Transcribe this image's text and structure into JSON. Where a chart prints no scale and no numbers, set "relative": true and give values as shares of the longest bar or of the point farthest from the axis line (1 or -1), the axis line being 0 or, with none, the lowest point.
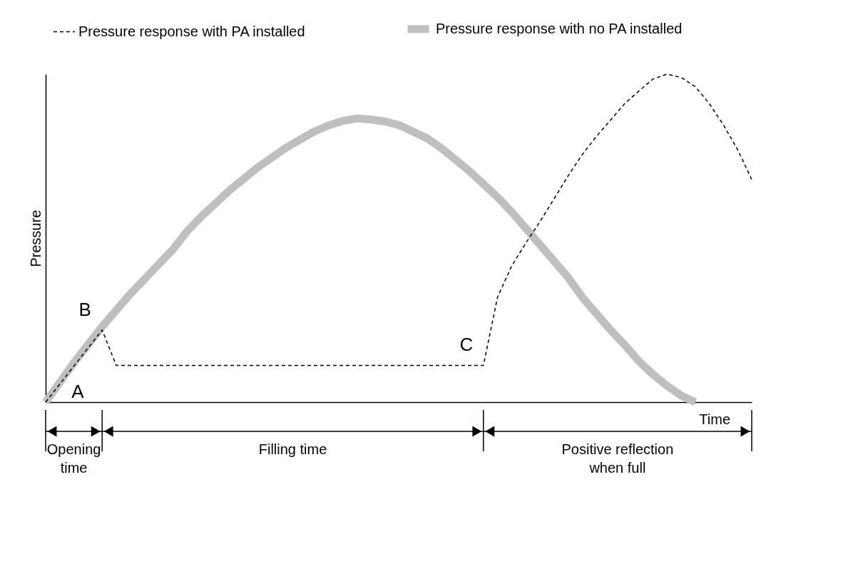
{
  "chart_data": {
    "type": "line",
    "relative": true,
    "ylabel": "Pressure",
    "xlabel": "Time",
    "categories": [
      null,
      null,
      null,
      null,
      null,
      null,
      null,
      null,
      null,
      null,
      null,
      null,
      null,
      null,
      null,
      null,
      null,
      null,
      null,
      null,
      null,
      null,
      null,
      null,
      null,
      null,
      null,
      null,
      null,
      null,
      null,
      null,
      null,
      null,
      null,
      null,
      null,
      null,
      null,
      null,
      null,
      null,
      null,
      null,
      null,
      null,
      null,
      null,
      null,
      null,
      null
    ],
    "tick_labels": false,
    "grid": false,
    "legend": "top",
    "marker": "none",
    "series": [
      {
        "name": "Pressure response with PA installed",
        "color": "#000000",
        "line_style": "dashed",
        "values": [
          0,
          0.055,
          0.11,
          0.165,
          0.22,
          0.112,
          0.112,
          0.112,
          0.112,
          0.112,
          0.112,
          0.112,
          0.112,
          0.112,
          0.112,
          0.112,
          0.112,
          0.112,
          0.112,
          0.112,
          0.112,
          0.112,
          0.112,
          0.112,
          0.112,
          0.112,
          0.112,
          0.112,
          0.112,
          0.112,
          0.112,
          0.112,
          0.32,
          0.415,
          0.485,
          0.55,
          0.62,
          0.69,
          0.755,
          0.81,
          0.86,
          0.91,
          0.948,
          0.985,
          1.0,
          0.99,
          0.962,
          0.91,
          0.845,
          0.77,
          0.679
        ]
      },
      {
        "name": "Pressure response with no PA installed",
        "color": "#bfbfbf",
        "line_style": "solid",
        "values": [
          0,
          0.06,
          0.12,
          0.175,
          0.23,
          0.28,
          0.33,
          0.375,
          0.42,
          0.465,
          0.52,
          0.565,
          0.605,
          0.645,
          0.68,
          0.715,
          0.745,
          0.775,
          0.8,
          0.825,
          0.843,
          0.857,
          0.865,
          0.862,
          0.856,
          0.845,
          0.825,
          0.805,
          0.775,
          0.74,
          0.705,
          0.665,
          0.625,
          0.58,
          0.53,
          0.48,
          0.43,
          0.38,
          0.32,
          0.27,
          0.22,
          0.175,
          0.125,
          0.085,
          0.05,
          0.02,
          0,
          null,
          null,
          null,
          null
        ]
      }
    ],
    "annotations": [
      "A",
      "B",
      "C",
      "Opening time",
      "Filling time",
      "Positive reflection when full"
    ]
  }
}
